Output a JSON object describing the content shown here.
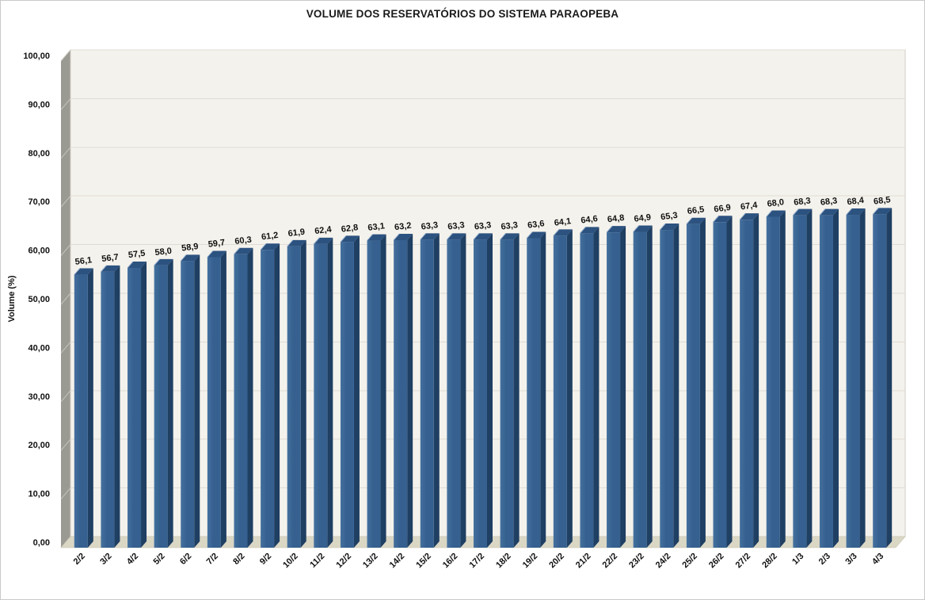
{
  "chart_data": {
    "type": "bar",
    "style": "excel-3d-column",
    "title": "VOLUME DOS RESERVATÓRIOS DO SISTEMA PARAOPEBA",
    "xlabel": "",
    "ylabel": "Volume (%)",
    "ylim": [
      0,
      100
    ],
    "ytick_step": 10,
    "ytick_labels": [
      "0,00",
      "10,00",
      "20,00",
      "30,00",
      "40,00",
      "50,00",
      "60,00",
      "70,00",
      "80,00",
      "90,00",
      "100,00"
    ],
    "grid": true,
    "legend": "none",
    "categories": [
      "2/2",
      "3/2",
      "4/2",
      "5/2",
      "6/2",
      "7/2",
      "8/2",
      "9/2",
      "10/2",
      "11/2",
      "12/2",
      "13/2",
      "14/2",
      "15/2",
      "16/2",
      "17/2",
      "18/2",
      "19/2",
      "20/2",
      "21/2",
      "22/2",
      "23/2",
      "24/2",
      "25/2",
      "26/2",
      "27/2",
      "28/2",
      "1/3",
      "2/3",
      "3/3",
      "4/3"
    ],
    "values": [
      56.1,
      56.7,
      57.5,
      58.0,
      58.9,
      59.7,
      60.3,
      61.2,
      61.9,
      62.4,
      62.8,
      63.1,
      63.2,
      63.3,
      63.3,
      63.3,
      63.3,
      63.6,
      64.1,
      64.6,
      64.8,
      64.9,
      65.3,
      66.5,
      66.9,
      67.4,
      68.0,
      68.3,
      68.3,
      68.4,
      68.5
    ],
    "value_labels": [
      "56,1",
      "56,7",
      "57,5",
      "58,0",
      "58,9",
      "59,7",
      "60,3",
      "61,2",
      "61,9",
      "62,4",
      "62,8",
      "63,1",
      "63,2",
      "63,3",
      "63,3",
      "63,3",
      "63,3",
      "63,6",
      "64,1",
      "64,6",
      "64,8",
      "64,9",
      "65,3",
      "66,5",
      "66,9",
      "67,4",
      "68,0",
      "68,3",
      "68,3",
      "68,4",
      "68,5"
    ],
    "colors": {
      "bar_front_light": "#44709e",
      "bar_front": "#35608f",
      "bar_side": "#1f3f63",
      "bar_top": "#2c5280",
      "bar_top_highlight": "#93adcb",
      "wall_back": "#f4f2ec",
      "wall_side": "#9b9a92",
      "wall_tick": "#c6c5bd",
      "wall_edge": "#cfcdc5",
      "floor": "#dad7c5",
      "floor_edge": "#c8c5b3",
      "gridline": "#dedcd3",
      "axis_text": "#111111",
      "title_text": "#1a1a1a"
    }
  }
}
